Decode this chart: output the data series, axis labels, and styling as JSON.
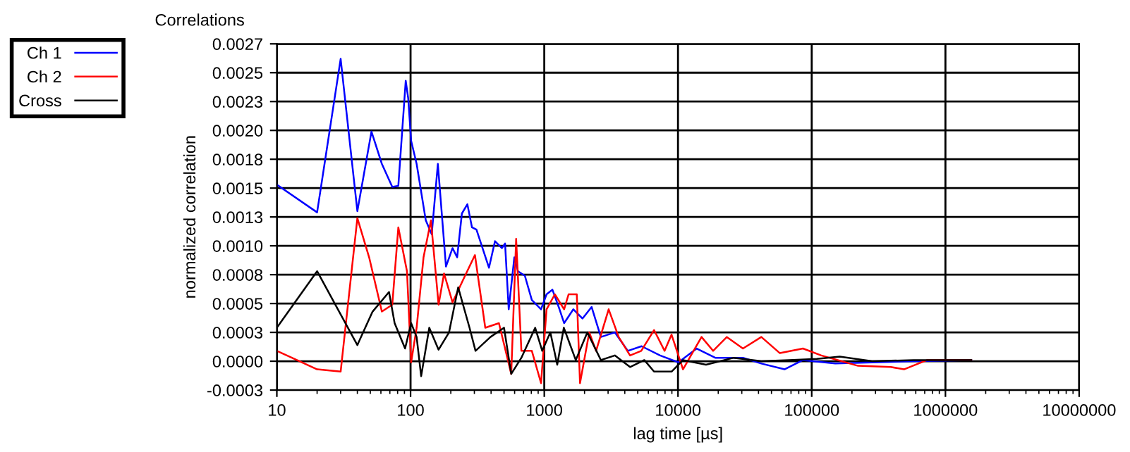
{
  "chart_data": {
    "type": "line",
    "title": "Correlations",
    "xlabel": "lag time [µs]",
    "ylabel": "normalized correlation",
    "log": "x",
    "grid": true,
    "legend": "top left",
    "line_style": "solid",
    "marker": "none",
    "xlim": [
      10,
      10000000
    ],
    "xticks": [
      10,
      100,
      1000,
      10000,
      100000,
      1000000,
      10000000
    ],
    "ylim": [
      -0.00025,
      0.00275
    ],
    "yticks": [
      {
        "value": -0.00025,
        "label": "-0.0003"
      },
      {
        "value": 0,
        "label": "0.0000"
      },
      {
        "value": 0.00025,
        "label": "0.0003"
      },
      {
        "value": 0.0005,
        "label": "0.0005"
      },
      {
        "value": 0.00075,
        "label": "0.0008"
      },
      {
        "value": 0.001,
        "label": "0.0010"
      },
      {
        "value": 0.00125,
        "label": "0.0013"
      },
      {
        "value": 0.0015,
        "label": "0.0015"
      },
      {
        "value": 0.00175,
        "label": "0.0018"
      },
      {
        "value": 0.002,
        "label": "0.0020"
      },
      {
        "value": 0.00225,
        "label": "0.0023"
      },
      {
        "value": 0.0025,
        "label": "0.0025"
      },
      {
        "value": 0.00275,
        "label": "0.0027"
      }
    ],
    "series": [
      {
        "name": "Ch 1",
        "color": "#0000ff",
        "x": [
          10,
          20,
          30,
          40,
          51,
          61,
          73,
          81,
          92,
          96,
          101,
          111,
          130,
          144,
          160,
          184,
          206,
          223,
          242,
          266,
          288,
          311,
          386,
          428,
          482,
          509,
          542,
          597,
          636,
          716,
          807,
          946,
          1040,
          1150,
          1300,
          1407,
          1650,
          1930,
          2260,
          2650,
          3370,
          4210,
          5340,
          7350,
          10070,
          13800,
          19000,
          30600,
          42000,
          62600,
          86000,
          150000,
          283000,
          578000,
          1560000
        ],
        "values": [
          0.00153,
          0.00129,
          0.00262,
          0.0013,
          0.00199,
          0.00171,
          0.00151,
          0.00152,
          0.00243,
          0.00228,
          0.00191,
          0.00171,
          0.00122,
          0.0011,
          0.00171,
          0.00082,
          0.00098,
          0.0009,
          0.00128,
          0.00136,
          0.00116,
          0.00114,
          0.00081,
          0.00104,
          0.00098,
          0.00102,
          0.00045,
          0.0009,
          0.00078,
          0.00074,
          0.00053,
          0.00045,
          0.00058,
          0.00062,
          0.00045,
          0.00033,
          0.00045,
          0.00037,
          0.00047,
          0.00021,
          0.00025,
          9e-05,
          0.00013,
          5e-05,
          -1e-05,
          0.00011,
          3e-05,
          3e-05,
          -2e-05,
          -7e-05,
          1e-05,
          -2e-05,
          -1e-05,
          0,
          1e-05
        ]
      },
      {
        "name": "Ch 2",
        "color": "#ff0000",
        "x": [
          10,
          20,
          30,
          40,
          49,
          61,
          73,
          81,
          94,
          101,
          111,
          125,
          142,
          162,
          178,
          206,
          246,
          303,
          362,
          458,
          566,
          616,
          674,
          807,
          946,
          1040,
          1200,
          1407,
          1520,
          1750,
          1850,
          2170,
          2440,
          3030,
          3600,
          4380,
          5310,
          6620,
          7940,
          8950,
          10900,
          15000,
          18300,
          23200,
          30600,
          42000,
          57800,
          86000,
          118000,
          222000,
          390000,
          490000,
          730000,
          1560000
        ],
        "values": [
          9e-05,
          -7e-05,
          -9e-05,
          0.00124,
          0.0009,
          0.00043,
          0.00049,
          0.00116,
          0.00078,
          -1e-05,
          0.00029,
          0.0009,
          0.00122,
          0.00049,
          0.00076,
          0.00051,
          0.0007,
          0.00092,
          0.00029,
          0.00033,
          -0.00011,
          0.00106,
          9e-05,
          9e-05,
          -0.00019,
          0.00045,
          0.00058,
          0.00045,
          0.00058,
          0.00058,
          -0.00019,
          0.00025,
          9e-05,
          0.00045,
          0.00021,
          5e-05,
          9e-05,
          0.00027,
          9e-05,
          0.00023,
          -7e-05,
          0.00021,
          9e-05,
          0.00021,
          0.00011,
          0.00021,
          7e-05,
          0.00011,
          5e-05,
          -4e-05,
          -5e-05,
          -7e-05,
          1e-05,
          1e-05
        ]
      },
      {
        "name": "Cross",
        "color": "#000000",
        "x": [
          10,
          20,
          40,
          52,
          69,
          76,
          91,
          101,
          111,
          120,
          138,
          162,
          194,
          227,
          276,
          306,
          396,
          500,
          566,
          674,
          855,
          965,
          1110,
          1250,
          1400,
          1720,
          2100,
          2650,
          3370,
          4380,
          5600,
          6620,
          8950,
          10900,
          16200,
          26100,
          42000,
          67800,
          109000,
          162000,
          283000,
          578000,
          1560000
        ],
        "values": [
          0.00029,
          0.00078,
          0.00014,
          0.00043,
          0.0006,
          0.00033,
          0.00011,
          0.00033,
          0.00021,
          -0.00013,
          0.00029,
          0.0001,
          0.00025,
          0.00064,
          0.00029,
          9e-05,
          0.00021,
          0.00029,
          -0.00011,
          3e-05,
          0.00029,
          9e-05,
          0.00025,
          -3e-05,
          0.00029,
          1e-05,
          0.00025,
          1e-05,
          5e-05,
          -5e-05,
          1e-05,
          -9e-05,
          -9e-05,
          1e-05,
          -3e-05,
          3e-05,
          0,
          1e-05,
          2e-05,
          4e-05,
          0,
          1e-05,
          1e-05
        ]
      }
    ]
  }
}
